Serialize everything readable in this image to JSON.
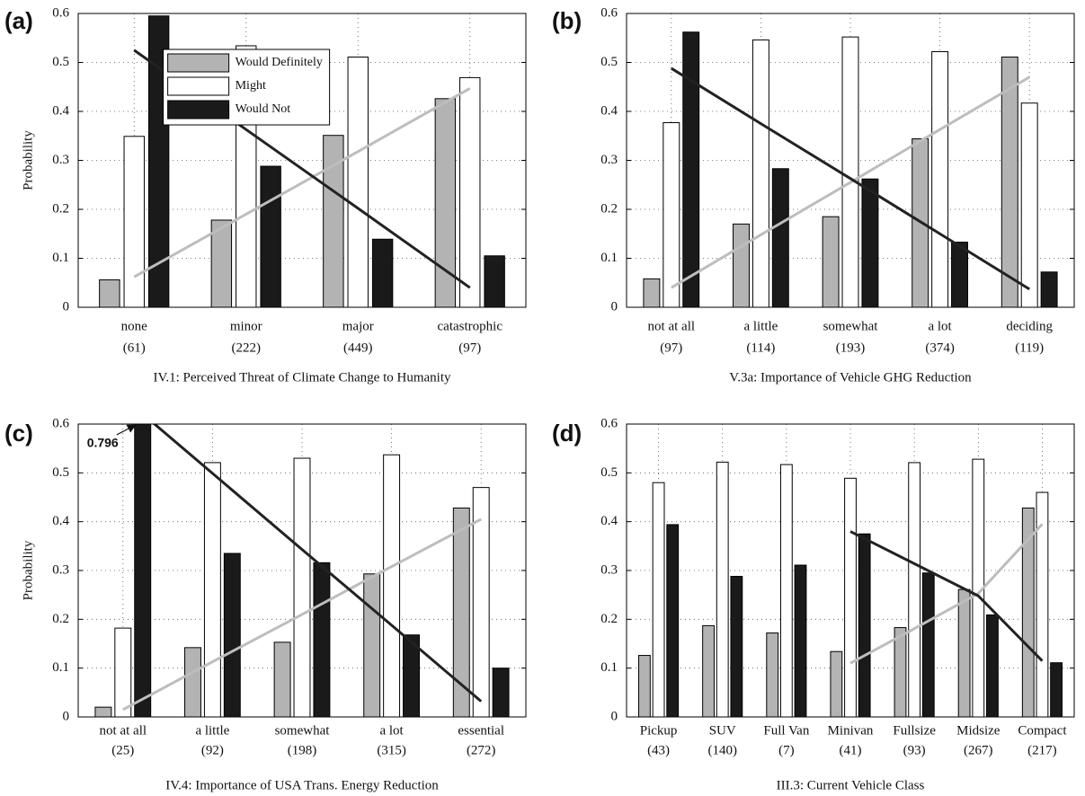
{
  "chart_data": [
    {
      "type": "bar",
      "panel_label": "(a)",
      "y_label": "Probability",
      "x_label": "IV.1: Perceived Threat of Climate Change to Humanity",
      "categories": [
        "none",
        "minor",
        "major",
        "catastrophic"
      ],
      "sample_sizes": [
        "(61)",
        "(222)",
        "(449)",
        "(97)"
      ],
      "series": [
        {
          "name": "Would Definitely",
          "color": "#b3b3b3",
          "values": [
            0.056,
            0.178,
            0.351,
            0.426
          ]
        },
        {
          "name": "Might",
          "color": "#ffffff",
          "values": [
            0.349,
            0.534,
            0.511,
            0.469
          ]
        },
        {
          "name": "Would Not",
          "color": "#1a1a1a",
          "values": [
            0.595,
            0.288,
            0.139,
            0.105
          ]
        }
      ],
      "trend_lines": [
        {
          "color": "#bdbdbd",
          "values": [
            0.062,
            0.19,
            0.318,
            0.447
          ]
        },
        {
          "color": "#222222",
          "values": [
            0.525,
            0.363,
            0.202,
            0.04
          ]
        }
      ],
      "legend": "upper left",
      "ylim": [
        0,
        0.6
      ],
      "yticks": [
        0,
        0.1,
        0.2,
        0.3,
        0.4,
        0.5,
        0.6
      ],
      "grid": true
    },
    {
      "type": "bar",
      "panel_label": "(b)",
      "x_label": "V.3a: Importance of Vehicle GHG Reduction",
      "categories": [
        "not at all",
        "a little",
        "somewhat",
        "a lot",
        "deciding"
      ],
      "sample_sizes": [
        "(97)",
        "(114)",
        "(193)",
        "(374)",
        "(119)"
      ],
      "series": [
        {
          "color": "#b3b3b3",
          "values": [
            0.058,
            0.17,
            0.185,
            0.344,
            0.511
          ]
        },
        {
          "color": "#ffffff",
          "values": [
            0.377,
            0.546,
            0.552,
            0.522,
            0.417
          ]
        },
        {
          "color": "#1a1a1a",
          "values": [
            0.562,
            0.283,
            0.262,
            0.133,
            0.072
          ]
        }
      ],
      "trend_lines": [
        {
          "color": "#bdbdbd",
          "values": [
            0.04,
            0.148,
            0.255,
            0.363,
            0.47
          ]
        },
        {
          "color": "#222222",
          "values": [
            0.488,
            0.375,
            0.263,
            0.15,
            0.037
          ]
        }
      ],
      "ylim": [
        0,
        0.6
      ],
      "yticks": [
        0,
        0.1,
        0.2,
        0.3,
        0.4,
        0.5,
        0.6
      ],
      "grid": true
    },
    {
      "type": "bar",
      "panel_label": "(c)",
      "y_label": "Probability",
      "x_label": "IV.4: Importance of USA Trans. Energy Reduction",
      "categories": [
        "not at all",
        "a little",
        "somewhat",
        "a lot",
        "essential"
      ],
      "sample_sizes": [
        "(25)",
        "(92)",
        "(198)",
        "(315)",
        "(272)"
      ],
      "series": [
        {
          "color": "#b3b3b3",
          "values": [
            0.02,
            0.142,
            0.153,
            0.293,
            0.428
          ]
        },
        {
          "color": "#ffffff",
          "values": [
            0.182,
            0.521,
            0.53,
            0.537,
            0.47
          ]
        },
        {
          "color": "#1a1a1a",
          "values": [
            0.796,
            0.335,
            0.316,
            0.168,
            0.1
          ],
          "value_labels": [
            "0.796",
            null,
            null,
            null,
            null
          ]
        }
      ],
      "trend_lines": [
        {
          "color": "#bdbdbd",
          "values": [
            0.015,
            0.113,
            0.21,
            0.308,
            0.405
          ]
        },
        {
          "color": "#222222",
          "values": [
            0.655,
            0.499,
            0.343,
            0.188,
            0.032
          ]
        }
      ],
      "ylim": [
        0,
        0.6
      ],
      "yticks": [
        0,
        0.1,
        0.2,
        0.3,
        0.4,
        0.5,
        0.6
      ],
      "grid": true
    },
    {
      "type": "bar",
      "panel_label": "(d)",
      "x_label": "III.3: Current Vehicle Class",
      "categories": [
        "Pickup",
        "SUV",
        "Full Van",
        "Minivan",
        "Fullsize",
        "Midsize",
        "Compact"
      ],
      "sample_sizes": [
        "(43)",
        "(140)",
        "(7)",
        "(41)",
        "(93)",
        "(267)",
        "(217)"
      ],
      "series": [
        {
          "color": "#b3b3b3",
          "values": [
            0.126,
            0.187,
            0.172,
            0.134,
            0.183,
            0.261,
            0.428
          ]
        },
        {
          "color": "#ffffff",
          "values": [
            0.48,
            0.522,
            0.517,
            0.489,
            0.521,
            0.528,
            0.46
          ]
        },
        {
          "color": "#1a1a1a",
          "values": [
            0.394,
            0.288,
            0.311,
            0.375,
            0.295,
            0.209,
            0.111
          ]
        }
      ],
      "trend_lines": [
        {
          "color": "#bdbdbd",
          "values": [
            null,
            null,
            null,
            0.11,
            0.181,
            0.253,
            0.395
          ]
        },
        {
          "color": "#222222",
          "values": [
            null,
            null,
            null,
            0.38,
            0.314,
            0.248,
            0.115
          ]
        }
      ],
      "ylim": [
        0,
        0.6
      ],
      "yticks": [
        0,
        0.1,
        0.2,
        0.3,
        0.4,
        0.5,
        0.6
      ],
      "grid": true
    }
  ]
}
